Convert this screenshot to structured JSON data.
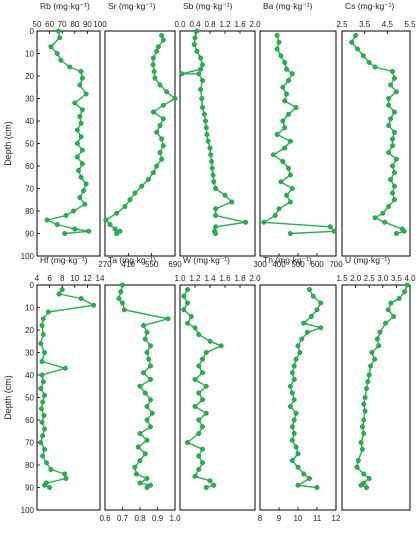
{
  "chart_data": [
    {
      "type": "line",
      "title": "Rb (mg·kg⁻¹)",
      "ylabel": "Depth (cm)",
      "xlim": [
        50,
        100
      ],
      "xticks": [
        "50",
        "60",
        "70",
        "80",
        "90",
        "100"
      ],
      "xtick_pos": "top",
      "ylim": [
        0,
        100
      ],
      "yticks": [
        "0",
        "10",
        "20",
        "30",
        "40",
        "50",
        "60",
        "70",
        "80",
        "90",
        "100"
      ],
      "points": [
        [
          67,
          0
        ],
        [
          68,
          3
        ],
        [
          61,
          7
        ],
        [
          66,
          10
        ],
        [
          69,
          13
        ],
        [
          76,
          16
        ],
        [
          85,
          18
        ],
        [
          86,
          21
        ],
        [
          84,
          24
        ],
        [
          89,
          28
        ],
        [
          80,
          32
        ],
        [
          86,
          35
        ],
        [
          84,
          38
        ],
        [
          85,
          41
        ],
        [
          82,
          44
        ],
        [
          85,
          47
        ],
        [
          82,
          50
        ],
        [
          86,
          53
        ],
        [
          82,
          56
        ],
        [
          86,
          59
        ],
        [
          83,
          62
        ],
        [
          85,
          65
        ],
        [
          89,
          68
        ],
        [
          87,
          71
        ],
        [
          84,
          74
        ],
        [
          88,
          77
        ],
        [
          79,
          80
        ],
        [
          73,
          82
        ],
        [
          58,
          84
        ],
        [
          66,
          86
        ],
        [
          80,
          88
        ],
        [
          91,
          89
        ],
        [
          72,
          90
        ]
      ]
    },
    {
      "type": "line",
      "title": "Sr (mg·kg⁻¹)",
      "xlim": [
        270,
        690
      ],
      "xticks": [
        "270",
        "410",
        "550",
        "690"
      ],
      "xtick_pos": "bottom",
      "ylim": [
        0,
        100
      ],
      "points": [
        [
          610,
          2
        ],
        [
          620,
          4
        ],
        [
          590,
          7
        ],
        [
          580,
          9
        ],
        [
          560,
          12
        ],
        [
          558,
          15
        ],
        [
          565,
          18
        ],
        [
          570,
          21
        ],
        [
          600,
          24
        ],
        [
          640,
          27
        ],
        [
          690,
          30
        ],
        [
          620,
          33
        ],
        [
          560,
          36
        ],
        [
          620,
          39
        ],
        [
          600,
          42
        ],
        [
          580,
          45
        ],
        [
          610,
          48
        ],
        [
          620,
          51
        ],
        [
          600,
          54
        ],
        [
          610,
          57
        ],
        [
          580,
          60
        ],
        [
          560,
          63
        ],
        [
          530,
          66
        ],
        [
          490,
          69
        ],
        [
          450,
          72
        ],
        [
          420,
          75
        ],
        [
          390,
          78
        ],
        [
          340,
          81
        ],
        [
          275,
          84
        ],
        [
          300,
          86
        ],
        [
          330,
          88
        ],
        [
          360,
          89
        ],
        [
          340,
          90
        ]
      ]
    },
    {
      "type": "line",
      "title": "Sb (mg·kg⁻¹)",
      "xlim": [
        0,
        2
      ],
      "xticks": [
        "0.0",
        "0.4",
        "0.8",
        "1.2",
        "1.6",
        "2.0"
      ],
      "xtick_pos": "top",
      "ylim": [
        0,
        100
      ],
      "points": [
        [
          0.45,
          0
        ],
        [
          0.4,
          3
        ],
        [
          0.38,
          6
        ],
        [
          0.45,
          9
        ],
        [
          0.55,
          12
        ],
        [
          0.6,
          15
        ],
        [
          0.55,
          17
        ],
        [
          0.05,
          19
        ],
        [
          0.5,
          19
        ],
        [
          0.6,
          22
        ],
        [
          0.55,
          26
        ],
        [
          0.58,
          30
        ],
        [
          0.6,
          34
        ],
        [
          0.65,
          37
        ],
        [
          0.68,
          40
        ],
        [
          0.7,
          43
        ],
        [
          0.72,
          46
        ],
        [
          0.75,
          49
        ],
        [
          0.8,
          52
        ],
        [
          0.82,
          55
        ],
        [
          0.84,
          58
        ],
        [
          0.86,
          61
        ],
        [
          0.88,
          64
        ],
        [
          0.9,
          67
        ],
        [
          0.95,
          70
        ],
        [
          1.2,
          73
        ],
        [
          1.38,
          76
        ],
        [
          0.95,
          79
        ],
        [
          0.95,
          82
        ],
        [
          1.75,
          85
        ],
        [
          0.95,
          87
        ],
        [
          0.92,
          89
        ],
        [
          0.95,
          90
        ]
      ]
    },
    {
      "type": "line",
      "title": "Ba (mg·kg⁻¹)",
      "xlim": [
        300,
        700
      ],
      "xticks": [
        "300",
        "400",
        "500",
        "600",
        "700"
      ],
      "xtick_pos": "bottom",
      "ylim": [
        0,
        100
      ],
      "points": [
        [
          390,
          2
        ],
        [
          400,
          5
        ],
        [
          390,
          8
        ],
        [
          410,
          11
        ],
        [
          430,
          14
        ],
        [
          440,
          17
        ],
        [
          470,
          19
        ],
        [
          450,
          22
        ],
        [
          420,
          25
        ],
        [
          440,
          28
        ],
        [
          430,
          31
        ],
        [
          490,
          34
        ],
        [
          450,
          37
        ],
        [
          420,
          40
        ],
        [
          430,
          43
        ],
        [
          390,
          46
        ],
        [
          460,
          49
        ],
        [
          430,
          52
        ],
        [
          370,
          55
        ],
        [
          420,
          58
        ],
        [
          450,
          61
        ],
        [
          460,
          64
        ],
        [
          410,
          67
        ],
        [
          470,
          70
        ],
        [
          440,
          73
        ],
        [
          460,
          76
        ],
        [
          400,
          79
        ],
        [
          380,
          82
        ],
        [
          320,
          85
        ],
        [
          670,
          87
        ],
        [
          690,
          89
        ],
        [
          460,
          90
        ]
      ]
    },
    {
      "type": "line",
      "title": "Cs (mg·kg⁻¹)",
      "xlim": [
        2.5,
        6
      ],
      "xticks": [
        "2.5",
        "3.5",
        "4.5",
        "5.5"
      ],
      "xtick_pos": "top",
      "ylim": [
        0,
        100
      ],
      "points": [
        [
          3.2,
          2
        ],
        [
          3.0,
          5
        ],
        [
          3.3,
          8
        ],
        [
          3.6,
          11
        ],
        [
          3.9,
          14
        ],
        [
          4.2,
          16
        ],
        [
          5.1,
          18
        ],
        [
          5.2,
          21
        ],
        [
          5.0,
          24
        ],
        [
          5.3,
          27
        ],
        [
          4.9,
          30
        ],
        [
          4.9,
          33
        ],
        [
          5.2,
          36
        ],
        [
          5.0,
          39
        ],
        [
          4.9,
          42
        ],
        [
          5.2,
          45
        ],
        [
          5.1,
          48
        ],
        [
          5.1,
          51
        ],
        [
          4.9,
          54
        ],
        [
          5.3,
          57
        ],
        [
          5.1,
          60
        ],
        [
          5.2,
          63
        ],
        [
          5.0,
          66
        ],
        [
          5.2,
          69
        ],
        [
          5.1,
          72
        ],
        [
          5.2,
          75
        ],
        [
          4.9,
          78
        ],
        [
          4.6,
          81
        ],
        [
          4.2,
          83
        ],
        [
          4.7,
          85
        ],
        [
          5.6,
          88
        ],
        [
          5.7,
          89
        ],
        [
          5.3,
          90
        ]
      ]
    },
    {
      "type": "line",
      "title": "Hf (mg·kg⁻¹)",
      "ylabel": "Depth (cm)",
      "xlim": [
        4,
        14
      ],
      "xticks": [
        "4",
        "6",
        "8",
        "10",
        "12",
        "14"
      ],
      "xtick_pos": "top",
      "ylim": [
        0,
        100
      ],
      "yticks": [
        "0",
        "10",
        "20",
        "30",
        "40",
        "50",
        "60",
        "70",
        "80",
        "90",
        "100"
      ],
      "points": [
        [
          8,
          2
        ],
        [
          7.5,
          4
        ],
        [
          11,
          6
        ],
        [
          13,
          9
        ],
        [
          5.8,
          12
        ],
        [
          5,
          15
        ],
        [
          4.8,
          18
        ],
        [
          5,
          22
        ],
        [
          4.6,
          26
        ],
        [
          5.2,
          30
        ],
        [
          4.8,
          34
        ],
        [
          8.5,
          37
        ],
        [
          4.8,
          40
        ],
        [
          5,
          43
        ],
        [
          4.6,
          46
        ],
        [
          5.2,
          49
        ],
        [
          4.9,
          52
        ],
        [
          4.7,
          55
        ],
        [
          5.1,
          58
        ],
        [
          4.8,
          61
        ],
        [
          5.2,
          64
        ],
        [
          4.9,
          67
        ],
        [
          4.6,
          70
        ],
        [
          5.2,
          73
        ],
        [
          4.9,
          76
        ],
        [
          5.5,
          79
        ],
        [
          6.2,
          82
        ],
        [
          8.4,
          84
        ],
        [
          8.6,
          86
        ],
        [
          5.5,
          88
        ],
        [
          5.2,
          89
        ],
        [
          6,
          90
        ]
      ]
    },
    {
      "type": "line",
      "title": "Ta (mg·kg⁻¹)",
      "xlim": [
        0.6,
        1.0
      ],
      "xticks": [
        "0.6",
        "0.7",
        "0.8",
        "0.9",
        "1.0"
      ],
      "xtick_pos": "bottom",
      "ylim": [
        0,
        100
      ],
      "points": [
        [
          0.7,
          0
        ],
        [
          0.69,
          3
        ],
        [
          0.68,
          6
        ],
        [
          0.7,
          8
        ],
        [
          0.71,
          11
        ],
        [
          0.96,
          15
        ],
        [
          0.82,
          18
        ],
        [
          0.84,
          21
        ],
        [
          0.83,
          24
        ],
        [
          0.86,
          27
        ],
        [
          0.84,
          30
        ],
        [
          0.85,
          33
        ],
        [
          0.86,
          36
        ],
        [
          0.82,
          39
        ],
        [
          0.86,
          42
        ],
        [
          0.8,
          45
        ],
        [
          0.83,
          48
        ],
        [
          0.86,
          51
        ],
        [
          0.84,
          54
        ],
        [
          0.87,
          57
        ],
        [
          0.84,
          60
        ],
        [
          0.86,
          63
        ],
        [
          0.8,
          66
        ],
        [
          0.84,
          69
        ],
        [
          0.79,
          72
        ],
        [
          0.83,
          75
        ],
        [
          0.8,
          78
        ],
        [
          0.77,
          81
        ],
        [
          0.78,
          84
        ],
        [
          0.84,
          86
        ],
        [
          0.8,
          88
        ],
        [
          0.86,
          89
        ],
        [
          0.84,
          90
        ]
      ]
    },
    {
      "type": "line",
      "title": "W (mg·kg⁻¹)",
      "xlim": [
        1.0,
        2.0
      ],
      "xticks": [
        "1.0",
        "1.2",
        "1.4",
        "1.6",
        "1.8",
        "2.0"
      ],
      "xtick_pos": "top",
      "ylim": [
        0,
        100
      ],
      "points": [
        [
          1.1,
          2
        ],
        [
          1.05,
          5
        ],
        [
          1.1,
          8
        ],
        [
          1.05,
          11
        ],
        [
          1.15,
          14
        ],
        [
          1.1,
          17
        ],
        [
          1.2,
          19
        ],
        [
          1.25,
          22
        ],
        [
          1.4,
          25
        ],
        [
          1.55,
          27
        ],
        [
          1.35,
          30
        ],
        [
          1.3,
          33
        ],
        [
          1.25,
          36
        ],
        [
          1.3,
          39
        ],
        [
          1.2,
          42
        ],
        [
          1.35,
          45
        ],
        [
          1.25,
          48
        ],
        [
          1.3,
          51
        ],
        [
          1.2,
          54
        ],
        [
          1.35,
          57
        ],
        [
          1.25,
          60
        ],
        [
          1.3,
          63
        ],
        [
          1.25,
          66
        ],
        [
          1.1,
          70
        ],
        [
          1.3,
          73
        ],
        [
          1.25,
          76
        ],
        [
          1.3,
          79
        ],
        [
          1.25,
          82
        ],
        [
          1.2,
          85
        ],
        [
          1.4,
          87
        ],
        [
          1.45,
          89
        ],
        [
          1.35,
          90
        ]
      ]
    },
    {
      "type": "line",
      "title": "Th (mg·kg⁻¹)",
      "xlim": [
        8,
        12
      ],
      "xticks": [
        "8",
        "9",
        "10",
        "11",
        "12"
      ],
      "xtick_pos": "bottom",
      "ylim": [
        0,
        100
      ],
      "points": [
        [
          10.6,
          2
        ],
        [
          10.8,
          5
        ],
        [
          11.2,
          8
        ],
        [
          11.0,
          11
        ],
        [
          10.7,
          14
        ],
        [
          10.3,
          17
        ],
        [
          11.2,
          19
        ],
        [
          10.5,
          21
        ],
        [
          10.2,
          24
        ],
        [
          10.0,
          27
        ],
        [
          10.1,
          30
        ],
        [
          9.9,
          33
        ],
        [
          9.8,
          36
        ],
        [
          9.7,
          39
        ],
        [
          9.8,
          42
        ],
        [
          9.6,
          45
        ],
        [
          9.7,
          48
        ],
        [
          9.8,
          51
        ],
        [
          9.6,
          54
        ],
        [
          9.9,
          57
        ],
        [
          9.8,
          60
        ],
        [
          9.7,
          63
        ],
        [
          9.8,
          66
        ],
        [
          9.7,
          69
        ],
        [
          9.9,
          72
        ],
        [
          10.0,
          75
        ],
        [
          9.7,
          78
        ],
        [
          10.0,
          81
        ],
        [
          10.3,
          84
        ],
        [
          10.6,
          86
        ],
        [
          10.0,
          89
        ],
        [
          11.0,
          90
        ]
      ]
    },
    {
      "type": "line",
      "title": "U (mg·kg⁻¹)",
      "xlim": [
        1.5,
        4.0
      ],
      "xticks": [
        "1.5",
        "2.0",
        "2.5",
        "3.0",
        "3.5",
        "4.0"
      ],
      "xtick_pos": "top",
      "ylim": [
        0,
        100
      ],
      "points": [
        [
          3.9,
          0
        ],
        [
          3.8,
          3
        ],
        [
          3.6,
          6
        ],
        [
          3.3,
          8
        ],
        [
          3.2,
          11
        ],
        [
          3.4,
          14
        ],
        [
          3.1,
          17
        ],
        [
          2.9,
          21
        ],
        [
          2.8,
          24
        ],
        [
          2.85,
          27
        ],
        [
          2.6,
          30
        ],
        [
          2.7,
          33
        ],
        [
          2.55,
          36
        ],
        [
          2.5,
          40
        ],
        [
          2.45,
          43
        ],
        [
          2.4,
          46
        ],
        [
          2.35,
          50
        ],
        [
          2.3,
          53
        ],
        [
          2.35,
          56
        ],
        [
          2.3,
          60
        ],
        [
          2.25,
          63
        ],
        [
          2.3,
          66
        ],
        [
          2.2,
          70
        ],
        [
          2.25,
          73
        ],
        [
          2.1,
          78
        ],
        [
          2.05,
          81
        ],
        [
          2.3,
          84
        ],
        [
          2.5,
          86
        ],
        [
          2.3,
          88
        ],
        [
          2.2,
          89
        ],
        [
          2.4,
          90
        ]
      ]
    }
  ]
}
